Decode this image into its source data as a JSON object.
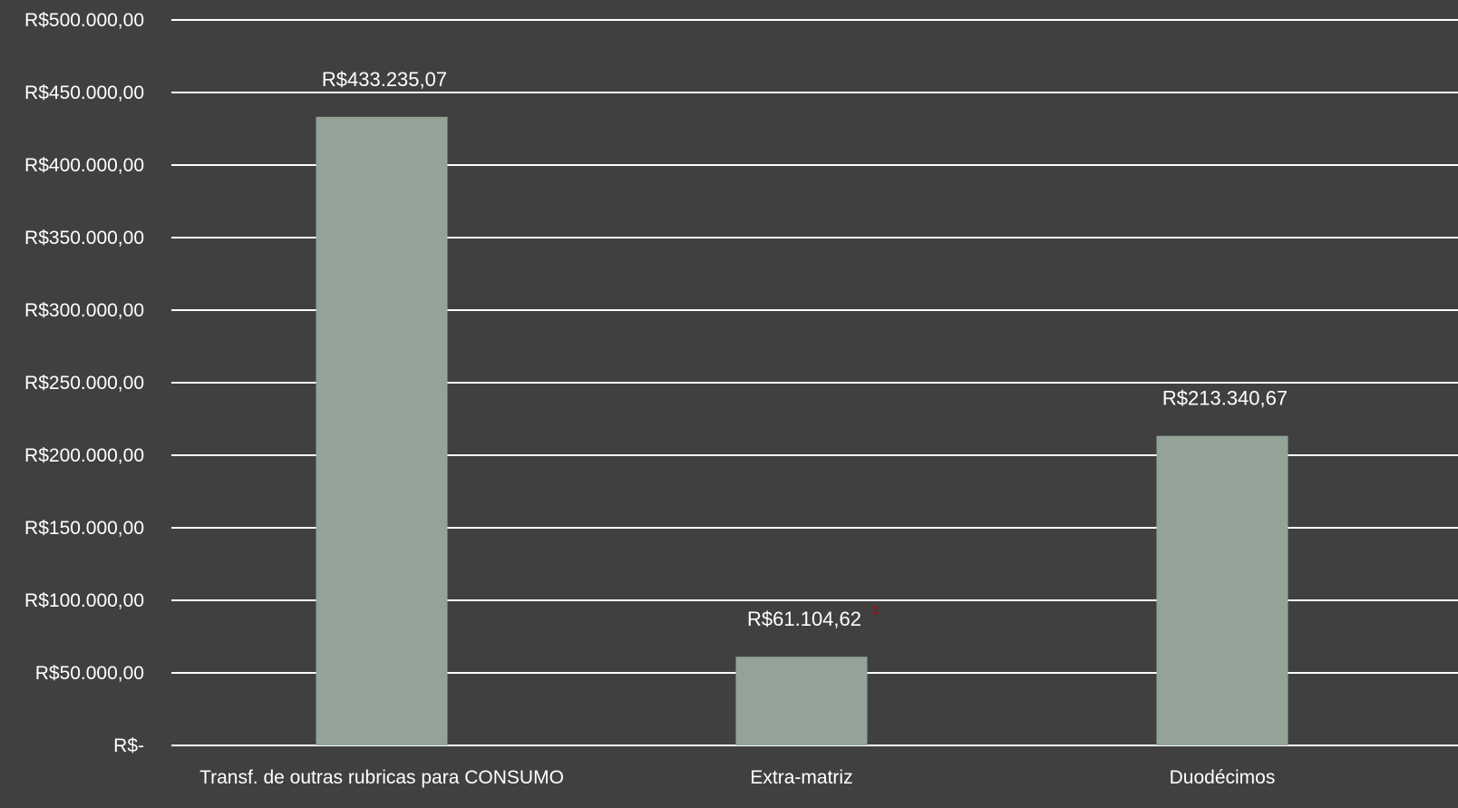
{
  "colors": {
    "background": "#404040",
    "bar": "#93a398",
    "gridline": "#ffffff",
    "text": "#ffffff",
    "marker": "#c00000"
  },
  "marker_text": "1",
  "chart_data": {
    "type": "bar",
    "title": "",
    "xlabel": "",
    "ylabel": "",
    "grid": true,
    "legend": "none",
    "ylim": [
      0,
      500000
    ],
    "y_ticks": [
      0,
      50000,
      100000,
      150000,
      200000,
      250000,
      300000,
      350000,
      400000,
      450000,
      500000
    ],
    "y_tick_labels": [
      "R$-",
      "R$50.000,00",
      "R$100.000,00",
      "R$150.000,00",
      "R$200.000,00",
      "R$250.000,00",
      "R$300.000,00",
      "R$350.000,00",
      "R$400.000,00",
      "R$450.000,00",
      "R$500.000,00"
    ],
    "categories": [
      "Transf. de outras rubricas para CONSUMO",
      "Extra-matriz",
      "Duodécimos"
    ],
    "values": [
      433235.07,
      61104.62,
      213340.67
    ],
    "data_labels": [
      "R$433.235,07",
      "R$61.104,62",
      "R$213.340,67"
    ]
  }
}
